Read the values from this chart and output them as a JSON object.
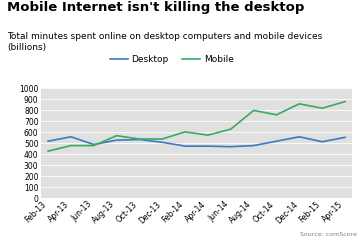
{
  "title": "Mobile Internet isn't killing the desktop",
  "subtitle": "Total minutes spent online on desktop computers and mobile devices\n(billions)",
  "source": "Source: comScore",
  "x_labels": [
    "Feb-13",
    "Apr-13",
    "Jun-13",
    "Aug-13",
    "Oct-13",
    "Dec-13",
    "Feb-14",
    "Apr-14",
    "Jun-14",
    "Aug-14",
    "Oct-14",
    "Dec-14",
    "Feb-15",
    "Apr-15"
  ],
  "desktop": [
    520,
    560,
    490,
    530,
    535,
    510,
    475,
    475,
    470,
    480,
    520,
    560,
    515,
    555
  ],
  "mobile": [
    430,
    480,
    480,
    570,
    540,
    540,
    605,
    575,
    630,
    800,
    760,
    860,
    820,
    880
  ],
  "desktop_color": "#3b7bbf",
  "mobile_color": "#3aaa5e",
  "bg_color": "#e0e0e0",
  "fig_bg": "#ffffff",
  "ylim": [
    0,
    1000
  ],
  "yticks": [
    0,
    100,
    200,
    300,
    400,
    500,
    600,
    700,
    800,
    900,
    1000
  ],
  "title_fontsize": 9.5,
  "subtitle_fontsize": 6.5,
  "tick_fontsize": 5.5,
  "legend_fontsize": 6.5,
  "source_fontsize": 4.5,
  "line_width": 1.2
}
